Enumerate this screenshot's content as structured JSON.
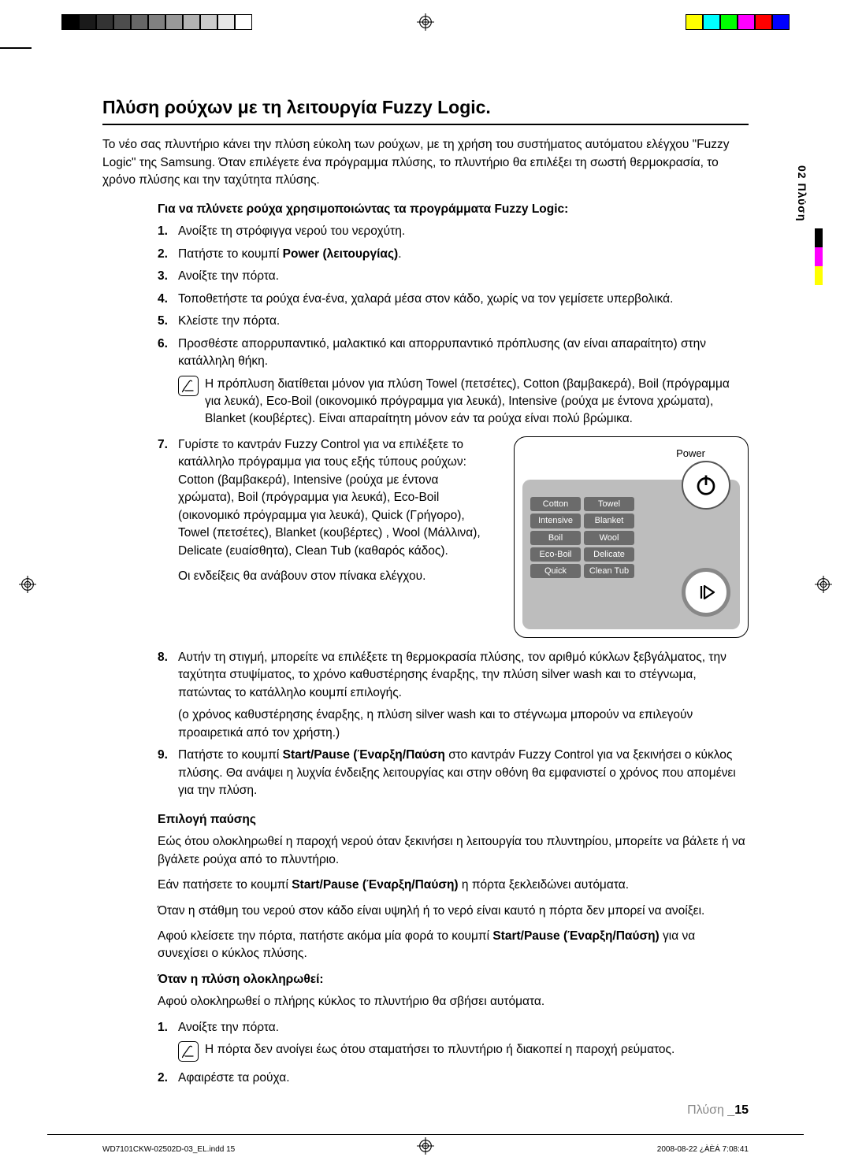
{
  "printermarks": {
    "grey_swatches": [
      "#000000",
      "#1a1a1a",
      "#333333",
      "#4d4d4d",
      "#666666",
      "#808080",
      "#999999",
      "#b3b3b3",
      "#cccccc",
      "#e6e6e6",
      "#ffffff"
    ],
    "color_swatches": [
      "#ffff00",
      "#00ffff",
      "#00ff00",
      "#ff00ff",
      "#ff0000",
      "#0000ff"
    ]
  },
  "side_tab": "02 Πλύση",
  "side_bar_colors": [
    "#000000",
    "#ff00ff",
    "#ffff00"
  ],
  "heading": "Πλύση ρούχων με τη λειτουργία Fuzzy Logic.",
  "intro": "Το νέο σας πλυντήριο κάνει την πλύση εύκολη των ρούχων, με τη χρήση του συστήματος αυτόματου ελέγχου \"Fuzzy Logic\" της Samsung. Όταν επιλέγετε ένα πρόγραμμα πλύσης, το πλυντήριο θα επιλέξει τη σωστή θερμοκρασία, το χρόνο πλύσης και την ταχύτητα πλύσης.",
  "sub1": "Για να πλύνετε ρούχα χρησιμοποιώντας τα προγράμματα Fuzzy Logic:",
  "steps": [
    {
      "n": "1.",
      "t": "Ανοίξτε τη στρόφιγγα νερού του νεροχύτη."
    },
    {
      "n": "2.",
      "t_pre": "Πατήστε το κουμπί ",
      "t_b": "Power (λειτουργίας)",
      "t_post": "."
    },
    {
      "n": "3.",
      "t": "Ανοίξτε την πόρτα."
    },
    {
      "n": "4.",
      "t": "Τοποθετήστε τα ρούχα ένα-ένα, χαλαρά μέσα στον κάδο, χωρίς να τον γεμίσετε υπερβολικά."
    },
    {
      "n": "5.",
      "t": "Κλείστε την πόρτα."
    },
    {
      "n": "6.",
      "t": "Προσθέστε απορρυπαντικό, μαλακτικό και απορρυπαντικό πρόπλυσης (αν είναι απαραίτητο) στην κατάλληλη θήκη."
    }
  ],
  "note6": "Η πρόπλυση διατίθεται μόνον για πλύση Towel (πετσέτες), Cotton (βαμβακερά), Boil (πρόγραμμα για λευκά), Eco-Boil (οικονομικό πρόγραμμα για λευκά), Intensive (ρούχα με έντονα χρώματα), Blanket (κουβέρτες). Είναι απαραίτητη μόνον εάν τα ρούχα είναι πολύ βρώμικα.",
  "step7": {
    "n": "7.",
    "t": "Γυρίστε το καντράν Fuzzy Control για να επιλέξετε το κατάλληλο πρόγραμμα για τους εξής τύπους ρούχων: Cotton (βαμβακερά), Intensive (ρούχα με έντονα χρώματα), Boil (πρόγραμμα για λευκά), Eco-Boil (οικονομικό πρόγραμμα για λευκά), Quick (Γρήγορο), Towel (πετσέτες), Blanket (κουβέρτες) , Wool (Μάλλινα), Delicate (ευαίσθητα), Clean Tub (καθαρός κάδος).",
    "t2": "Οι ενδείξεις θα ανάβουν στον πίνακα ελέγχου."
  },
  "panel": {
    "power_label": "Power",
    "programs": [
      "Cotton",
      "Towel",
      "Intensive",
      "Blanket",
      "Boil",
      "Wool",
      "Eco-Boil",
      "Delicate",
      "Quick",
      "Clean Tub"
    ],
    "bg": "#bdbdbd",
    "cell_bg": "#6b6b6b",
    "cell_fg": "#ffffff"
  },
  "step8": {
    "n": "8.",
    "t": "Αυτήν τη στιγμή, μπορείτε να επιλέξετε τη θερμοκρασία πλύσης, τον αριθμό κύκλων ξεβγάλματος, την ταχύτητα στυψίματος, το χρόνο καθυστέρησης έναρξης, την πλύση silver wash και το στέγνωμα, πατώντας το κατάλληλο κουμπί επιλογής.",
    "t2": "(ο χρόνος καθυστέρησης έναρξης, η πλύση silver wash και το στέγνωμα μπορούν να επιλεγούν προαιρετικά από τον χρήστη.)"
  },
  "step9": {
    "n": "9.",
    "pre": "Πατήστε το κουμπί ",
    "b": "Start/Pause (Έναρξη/Παύση",
    "post": " στο καντράν Fuzzy Control για να ξεκινήσει ο κύκλος πλύσης. Θα ανάψει η λυχνία ένδειξης λειτουργίας και στην οθόνη θα εμφανιστεί ο χρόνος που απομένει για την πλύση."
  },
  "pause_head": "Επιλογή παύσης",
  "pause_p1": "Εώς ότου ολοκληρωθεί η παροχή νερού όταν ξεκινήσει η λειτουργία του πλυντηρίου, μπορείτε να βάλετε ή να βγάλετε ρούχα από το πλυντήριο.",
  "pause_p2_pre": "Εάν πατήσετε το κουμπί ",
  "pause_p2_b": "Start/Pause (Έναρξη/Παύση)",
  "pause_p2_post": " η πόρτα ξεκλειδώνει αυτόματα.",
  "pause_p3": "Όταν η στάθμη του νερού στον κάδο είναι υψηλή ή το νερό είναι καυτό η πόρτα δεν μπορεί να ανοίξει.",
  "pause_p4_pre": "Αφού κλείσετε την πόρτα, πατήστε ακόμα μία φορά το κουμπί ",
  "pause_p4_b": "Start/Pause (Έναρξη/Παύση)",
  "pause_p4_post": " για να συνεχίσει ο κύκλος πλύσης.",
  "done_head": "Όταν η πλύση ολοκληρωθεί:",
  "done_intro": "Αφού ολοκληρωθεί ο πλήρης κύκλος το πλυντήριο θα σβήσει αυτόματα.",
  "done_s1": {
    "n": "1.",
    "t": "Ανοίξτε την πόρτα."
  },
  "done_note": "Η πόρτα δεν ανοίγει έως ότου σταματήσει το πλυντήριο ή διακοπεί η παροχή ρεύματος.",
  "done_s2": {
    "n": "2.",
    "t": "Αφαιρέστε τα ρούχα."
  },
  "footer": {
    "label": "Πλύση _",
    "page": "15"
  },
  "meta": {
    "file": "WD7101CKW-02502D-03_EL.indd   15",
    "date": "2008-08-22   ¿ÀÈÁ 7:08:41"
  }
}
